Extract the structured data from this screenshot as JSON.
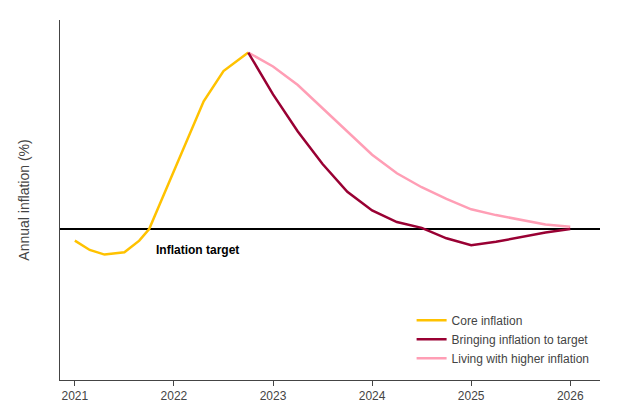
{
  "chart_data": {
    "type": "line",
    "ylabel": "Annual inflation (%)",
    "series": [
      {
        "name": "Core inflation",
        "color": "#FFC200",
        "x": [
          2021.0,
          2021.15,
          2021.3,
          2021.5,
          2021.65,
          2021.75,
          2021.85,
          2022.0,
          2022.15,
          2022.3,
          2022.5,
          2022.65,
          2022.75
        ],
        "values": [
          1.5,
          1.1,
          0.9,
          1.0,
          1.5,
          2.0,
          3.0,
          4.5,
          6.0,
          7.5,
          8.8,
          9.3,
          9.6
        ]
      },
      {
        "name": "Bringing inflation to target",
        "color": "#990033",
        "x": [
          2022.75,
          2023.0,
          2023.25,
          2023.5,
          2023.75,
          2024.0,
          2024.25,
          2024.5,
          2024.75,
          2025.0,
          2025.25,
          2025.5,
          2025.75,
          2026.0
        ],
        "values": [
          9.6,
          7.8,
          6.2,
          4.8,
          3.6,
          2.8,
          2.3,
          2.05,
          1.6,
          1.3,
          1.45,
          1.65,
          1.85,
          2.0
        ]
      },
      {
        "name": "Living with higher inflation",
        "color": "#FF9EB5",
        "x": [
          2022.75,
          2023.0,
          2023.25,
          2023.5,
          2023.75,
          2024.0,
          2024.25,
          2024.5,
          2024.75,
          2025.0,
          2025.25,
          2025.5,
          2025.75,
          2026.0
        ],
        "values": [
          9.6,
          9.0,
          8.2,
          7.2,
          6.2,
          5.2,
          4.4,
          3.8,
          3.3,
          2.85,
          2.6,
          2.4,
          2.2,
          2.1
        ]
      }
    ],
    "reference_lines": [
      {
        "y": 2.0,
        "color": "#000000"
      }
    ],
    "annotations": [
      {
        "text": "Inflation target",
        "x": 2021.8,
        "y": 1.5
      }
    ],
    "xlim": [
      2020.85,
      2026.3
    ],
    "ylim": [
      -4.5,
      11.0
    ],
    "xticks": [
      2021,
      2022,
      2023,
      2024,
      2025,
      2026
    ],
    "yticks": [],
    "tick_labels": "x",
    "grid": false,
    "legend": "lower right"
  }
}
